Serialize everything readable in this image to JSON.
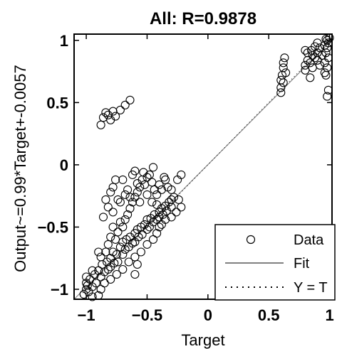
{
  "chart_data": {
    "type": "scatter",
    "title": "All: R=0.9878",
    "xlabel": "Target",
    "ylabel": "Output~=0.99*Target+-0.0057",
    "xlim": [
      -1.1,
      1.02
    ],
    "ylim": [
      -1.08,
      1.05
    ],
    "xticks": [
      -1,
      -0.5,
      0,
      0.5,
      1
    ],
    "xtick_labels": [
      "−1",
      "−0.5",
      "0",
      "0.5",
      "1"
    ],
    "yticks": [
      -1,
      -0.5,
      0,
      0.5,
      1
    ],
    "ytick_labels": [
      "−1",
      "−0.5",
      "0",
      "0.5",
      "1"
    ],
    "grid": false,
    "legend_position": "bottom-right",
    "legend": [
      {
        "label": "Data",
        "style": "circle"
      },
      {
        "label": "Fit",
        "style": "solid"
      },
      {
        "label": "Y = T",
        "style": "dotted"
      }
    ],
    "fit": {
      "slope": 0.99,
      "intercept": -0.0057
    },
    "series": [
      {
        "name": "Data",
        "points": [
          [
            -1.0,
            -1.0
          ],
          [
            -0.99,
            -0.97
          ],
          [
            -1.0,
            -0.95
          ],
          [
            -0.98,
            -1.02
          ],
          [
            -1.0,
            -0.9
          ],
          [
            -0.97,
            -0.92
          ],
          [
            -0.95,
            -0.98
          ],
          [
            -0.93,
            -0.88
          ],
          [
            -0.92,
            -0.95
          ],
          [
            -0.9,
            -0.85
          ],
          [
            -0.88,
            -0.9
          ],
          [
            -0.87,
            -0.8
          ],
          [
            -0.85,
            -0.86
          ],
          [
            -0.83,
            -0.78
          ],
          [
            -0.82,
            -0.84
          ],
          [
            -0.8,
            -0.75
          ],
          [
            -0.8,
            -0.82
          ],
          [
            -0.78,
            -0.7
          ],
          [
            -0.77,
            -0.79
          ],
          [
            -0.75,
            -0.72
          ],
          [
            -0.74,
            -0.78
          ],
          [
            -0.72,
            -0.66
          ],
          [
            -0.7,
            -0.72
          ],
          [
            -0.7,
            -0.62
          ],
          [
            -0.68,
            -0.68
          ],
          [
            -0.67,
            -0.6
          ],
          [
            -0.65,
            -0.66
          ],
          [
            -0.64,
            -0.58
          ],
          [
            -0.62,
            -0.63
          ],
          [
            -0.6,
            -0.55
          ],
          [
            -0.6,
            -0.62
          ],
          [
            -0.58,
            -0.52
          ],
          [
            -0.57,
            -0.58
          ],
          [
            -0.55,
            -0.5
          ],
          [
            -0.54,
            -0.56
          ],
          [
            -0.52,
            -0.48
          ],
          [
            -0.5,
            -0.52
          ],
          [
            -0.5,
            -0.44
          ],
          [
            -0.48,
            -0.5
          ],
          [
            -0.47,
            -0.43
          ],
          [
            -0.45,
            -0.46
          ],
          [
            -0.44,
            -0.4
          ],
          [
            -0.42,
            -0.44
          ],
          [
            -0.4,
            -0.38
          ],
          [
            -0.4,
            -0.42
          ],
          [
            -0.38,
            -0.35
          ],
          [
            -0.37,
            -0.4
          ],
          [
            -0.35,
            -0.33
          ],
          [
            -0.34,
            -0.37
          ],
          [
            -0.32,
            -0.3
          ],
          [
            -0.3,
            -0.34
          ],
          [
            -0.3,
            -0.28
          ],
          [
            -0.84,
            -0.7
          ],
          [
            -0.82,
            -0.64
          ],
          [
            -0.8,
            -0.58
          ],
          [
            -0.78,
            -0.5
          ],
          [
            -0.76,
            -0.6
          ],
          [
            -0.74,
            -0.54
          ],
          [
            -0.72,
            -0.46
          ],
          [
            -0.7,
            -0.5
          ],
          [
            -0.68,
            -0.44
          ],
          [
            -0.66,
            -0.4
          ],
          [
            -0.64,
            -0.35
          ],
          [
            -0.62,
            -0.3
          ],
          [
            -0.6,
            -0.26
          ],
          [
            -0.58,
            -0.22
          ],
          [
            -0.56,
            -0.18
          ],
          [
            -0.54,
            -0.12
          ],
          [
            -0.52,
            -0.16
          ],
          [
            -0.5,
            -0.1
          ],
          [
            -0.48,
            -0.08
          ],
          [
            -0.46,
            -0.14
          ],
          [
            -0.44,
            -0.2
          ],
          [
            -0.42,
            -0.24
          ],
          [
            -0.4,
            -0.16
          ],
          [
            -0.38,
            -0.2
          ],
          [
            -0.36,
            -0.1
          ],
          [
            -0.6,
            -0.05
          ],
          [
            -0.58,
            -0.15
          ],
          [
            -0.53,
            -0.06
          ],
          [
            -0.45,
            -0.02
          ],
          [
            -0.35,
            -0.12
          ],
          [
            -0.33,
            -0.18
          ],
          [
            -0.3,
            -0.2
          ],
          [
            -0.28,
            -0.26
          ],
          [
            -0.25,
            -0.12
          ],
          [
            -0.22,
            -0.08
          ],
          [
            -0.78,
            -0.18
          ],
          [
            -0.74,
            -0.28
          ],
          [
            -0.7,
            -0.12
          ],
          [
            -0.66,
            -0.2
          ],
          [
            -0.62,
            -0.08
          ],
          [
            -0.86,
            -0.42
          ],
          [
            -0.82,
            -0.34
          ],
          [
            -0.78,
            -0.38
          ],
          [
            -0.72,
            -0.3
          ],
          [
            -0.68,
            -0.24
          ],
          [
            -0.84,
            -0.28
          ],
          [
            -0.8,
            -0.22
          ],
          [
            -0.76,
            -0.12
          ],
          [
            -0.64,
            -0.26
          ],
          [
            -0.56,
            -0.3
          ],
          [
            -0.5,
            -0.24
          ],
          [
            -0.46,
            -0.3
          ],
          [
            -0.42,
            -0.32
          ],
          [
            -0.24,
            -0.28
          ],
          [
            -0.22,
            -0.34
          ],
          [
            -0.9,
            -0.7
          ],
          [
            -0.88,
            -0.74
          ],
          [
            -0.95,
            -0.85
          ],
          [
            -0.85,
            -0.95
          ],
          [
            -0.8,
            -0.92
          ],
          [
            -0.75,
            -0.88
          ],
          [
            -0.7,
            -0.84
          ],
          [
            -0.65,
            -0.78
          ],
          [
            -0.6,
            -0.74
          ],
          [
            -0.55,
            -0.7
          ],
          [
            -0.5,
            -0.64
          ],
          [
            -0.45,
            -0.6
          ],
          [
            -0.42,
            -0.55
          ],
          [
            -0.4,
            -0.5
          ],
          [
            -0.38,
            -0.48
          ],
          [
            -0.35,
            -0.44
          ],
          [
            -0.3,
            -0.42
          ],
          [
            -0.26,
            -0.38
          ],
          [
            -0.6,
            -0.88
          ],
          [
            -0.58,
            -0.8
          ],
          [
            -0.9,
            -1.05
          ],
          [
            -0.95,
            -1.06
          ],
          [
            -1.02,
            -1.04
          ],
          [
            -0.88,
            -1.0
          ],
          [
            -0.88,
            0.32
          ],
          [
            -0.86,
            0.38
          ],
          [
            -0.84,
            0.42
          ],
          [
            -0.82,
            0.4
          ],
          [
            -0.8,
            0.36
          ],
          [
            -0.78,
            0.43
          ],
          [
            -0.76,
            0.39
          ],
          [
            -0.72,
            0.44
          ],
          [
            -0.68,
            0.48
          ],
          [
            -0.64,
            0.52
          ],
          [
            0.6,
            0.62
          ],
          [
            0.6,
            0.68
          ],
          [
            0.61,
            0.72
          ],
          [
            0.62,
            0.78
          ],
          [
            0.62,
            0.82
          ],
          [
            0.63,
            0.86
          ],
          [
            0.6,
            0.58
          ],
          [
            0.62,
            0.66
          ],
          [
            0.64,
            0.74
          ],
          [
            0.8,
            0.8
          ],
          [
            0.82,
            0.84
          ],
          [
            0.84,
            0.82
          ],
          [
            0.86,
            0.88
          ],
          [
            0.85,
            0.92
          ],
          [
            0.88,
            0.86
          ],
          [
            0.9,
            0.9
          ],
          [
            0.92,
            0.94
          ],
          [
            0.9,
            0.84
          ],
          [
            0.94,
            0.88
          ],
          [
            0.8,
            0.76
          ],
          [
            0.82,
            0.9
          ],
          [
            0.86,
            0.78
          ],
          [
            0.84,
            0.7
          ],
          [
            0.88,
            0.95
          ],
          [
            0.9,
            0.98
          ],
          [
            0.92,
            0.8
          ],
          [
            0.8,
            0.92
          ],
          [
            0.96,
            0.96
          ],
          [
            0.98,
            1.0
          ],
          [
            0.97,
            0.9
          ],
          [
            0.98,
            0.94
          ],
          [
            0.99,
            0.86
          ],
          [
            0.96,
            0.82
          ],
          [
            0.98,
            0.78
          ],
          [
            0.97,
            0.72
          ],
          [
            1.0,
            1.02
          ],
          [
            0.99,
            0.98
          ],
          [
            0.97,
            1.01
          ],
          [
            0.98,
            0.55
          ],
          [
            0.99,
            0.6
          ],
          [
            0.96,
            0.74
          ]
        ]
      }
    ]
  }
}
